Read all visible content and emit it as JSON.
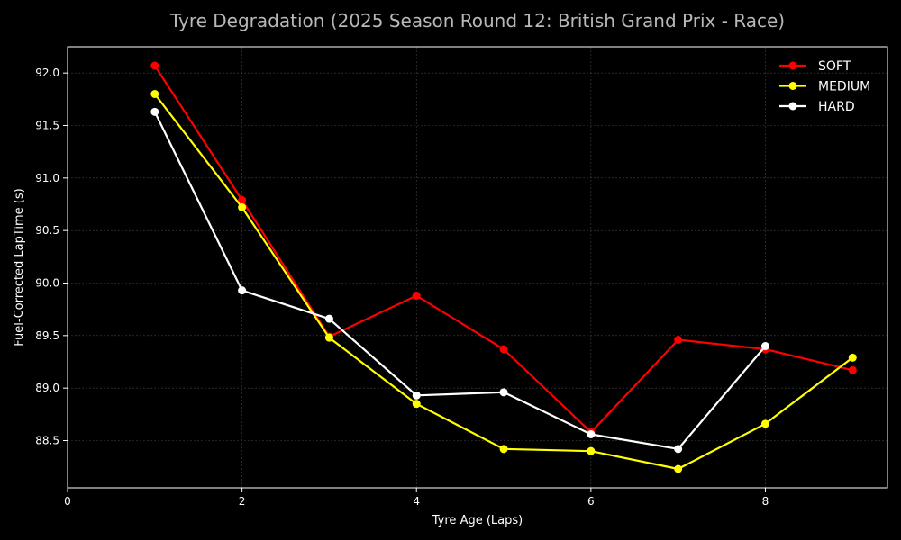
{
  "chart_data": {
    "type": "line",
    "title": "Tyre Degradation (2025 Season Round 12: British Grand Prix - Race)",
    "xlabel": "Tyre Age (Laps)",
    "ylabel": "Fuel-Corrected LapTime (s)",
    "xlim": [
      0,
      9.4
    ],
    "ylim": [
      88.05,
      92.25
    ],
    "xticks": [
      "0",
      "2",
      "4",
      "6",
      "8"
    ],
    "yticks": [
      "88.5",
      "89.0",
      "89.5",
      "90.0",
      "90.5",
      "91.0",
      "91.5",
      "92.0"
    ],
    "grid": true,
    "legend_position": "top-right",
    "background": "#000000",
    "series": [
      {
        "name": "SOFT",
        "color": "#ff0000",
        "x": [
          1,
          2,
          3,
          4,
          5,
          6,
          7,
          8,
          9
        ],
        "values": [
          92.07,
          90.79,
          89.49,
          89.88,
          89.37,
          88.58,
          89.46,
          89.37,
          89.17
        ]
      },
      {
        "name": "MEDIUM",
        "color": "#ffff00",
        "x": [
          1,
          2,
          3,
          4,
          5,
          6,
          7,
          8,
          9
        ],
        "values": [
          91.8,
          90.72,
          89.48,
          88.85,
          88.42,
          88.4,
          88.23,
          88.66,
          89.29
        ]
      },
      {
        "name": "HARD",
        "color": "#ffffff",
        "x": [
          1,
          2,
          3,
          4,
          5,
          6,
          7,
          8
        ],
        "values": [
          91.63,
          89.93,
          89.66,
          88.93,
          88.96,
          88.56,
          88.42,
          89.4
        ]
      }
    ]
  }
}
